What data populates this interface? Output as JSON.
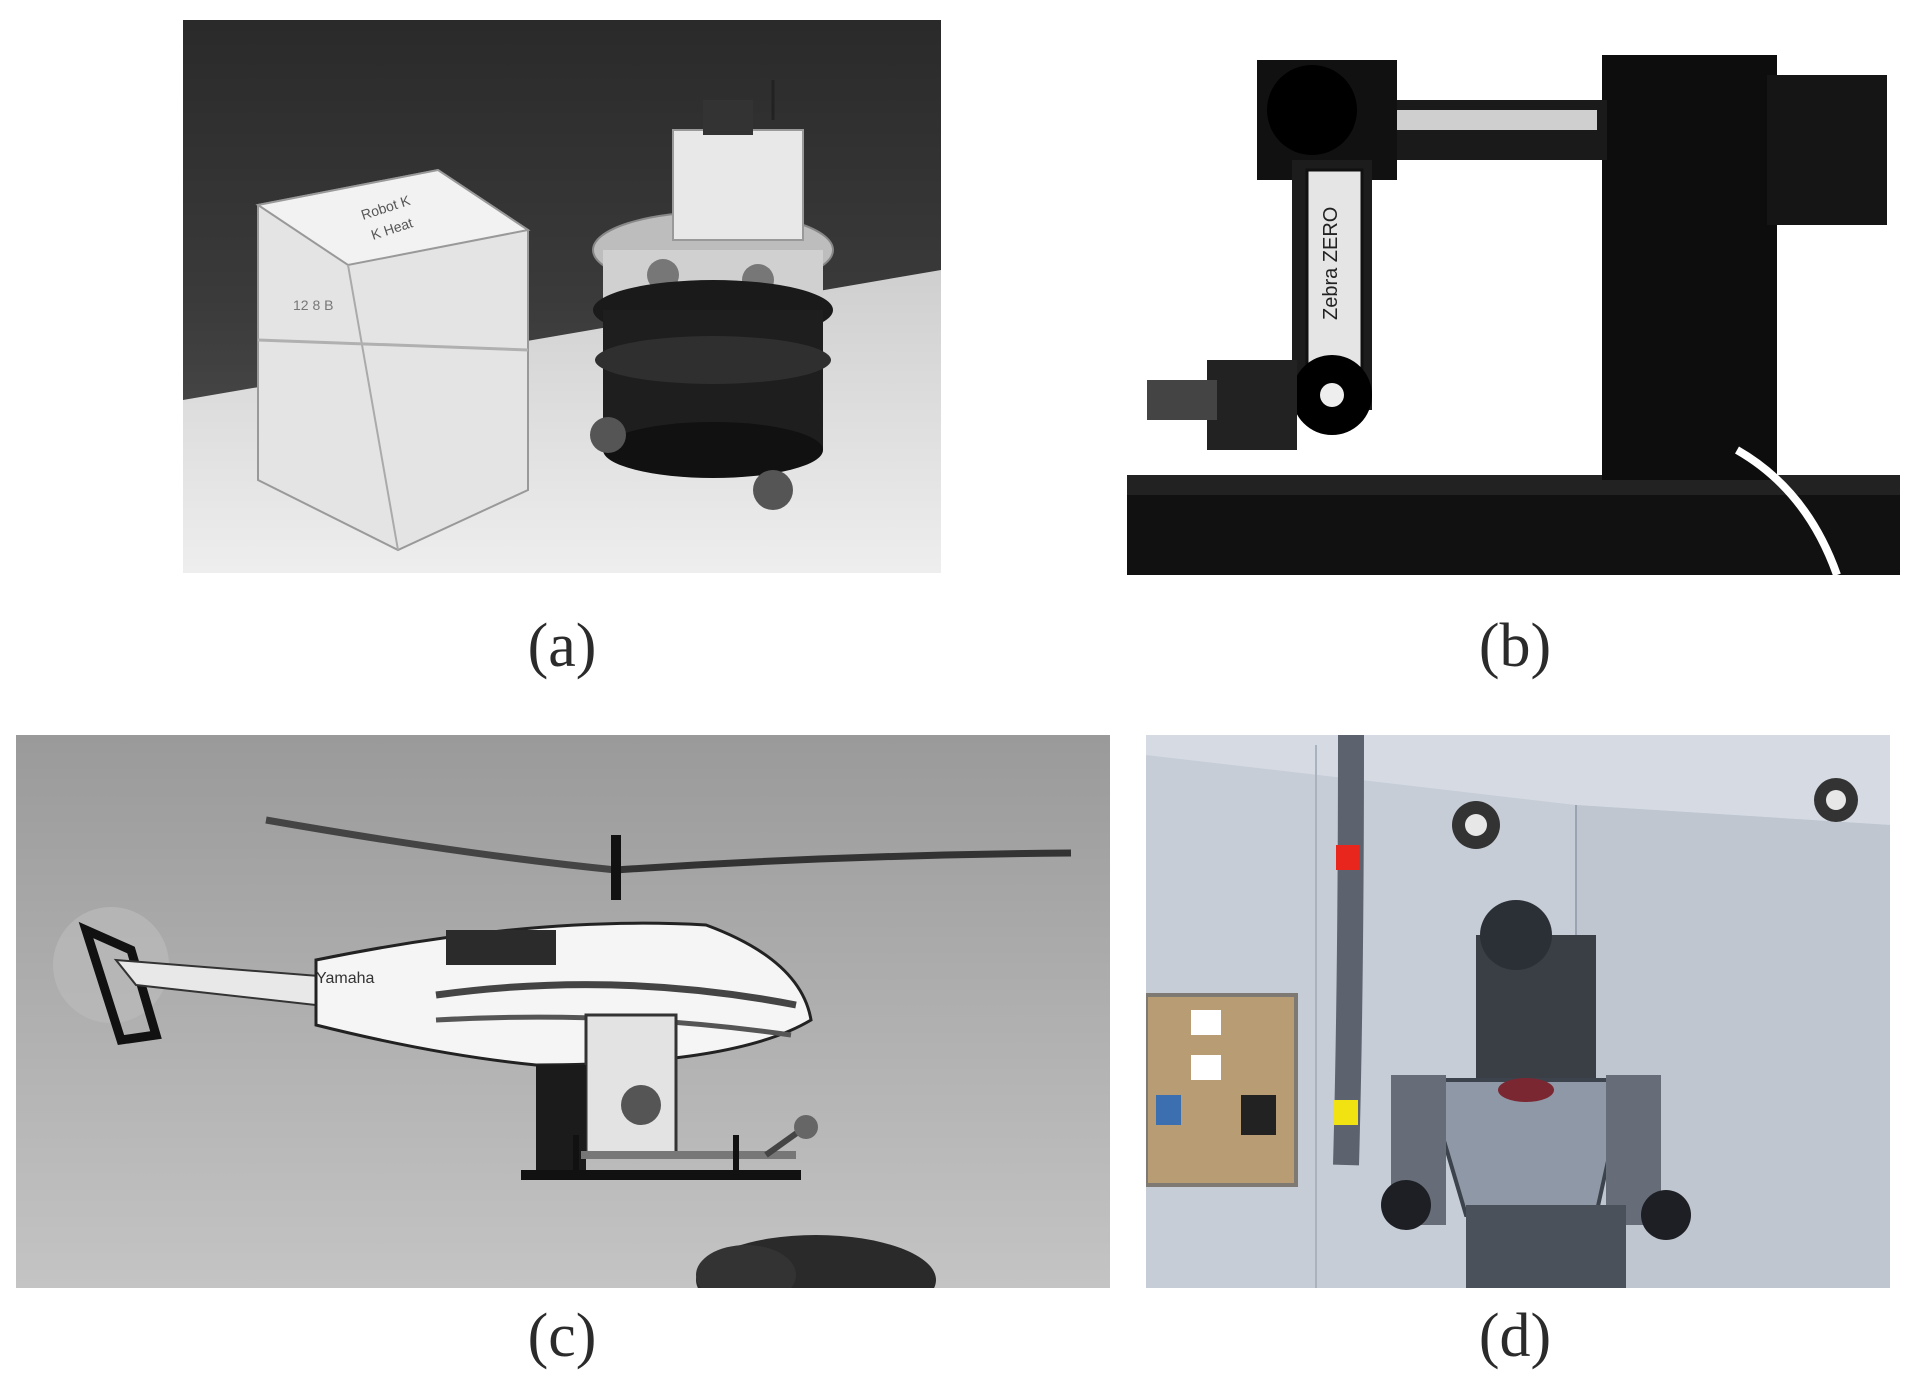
{
  "figure": {
    "panels": [
      {
        "id": "a",
        "caption": "(a)"
      },
      {
        "id": "b",
        "caption": "(b)"
      },
      {
        "id": "c",
        "caption": "(c)"
      },
      {
        "id": "d",
        "caption": "(d)"
      }
    ],
    "box_label": {
      "line1": "Robot K",
      "line2": "K Heat",
      "line3": "12 8 B"
    },
    "arm_label": "Zebra ZERO",
    "heli_label": "Yamaha"
  }
}
